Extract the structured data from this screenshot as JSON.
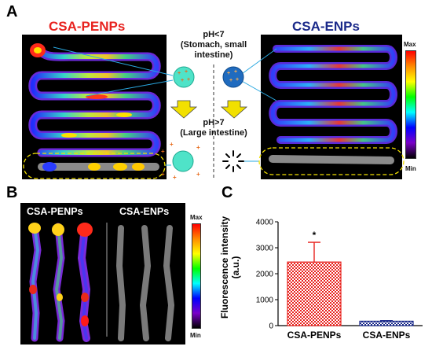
{
  "panel_a": {
    "label": "A",
    "left_title": "CSA-PENPs",
    "right_title": "CSA-ENPs",
    "ph_low": "pH<7",
    "ph_low_sub": "(Stomach, small intestine)",
    "ph_high": "pH>7",
    "ph_high_sub": "(Large intestine)",
    "colorbar_max": "Max",
    "colorbar_min": "Min"
  },
  "panel_b": {
    "label": "B",
    "left_title": "CSA-PENPs",
    "right_title": "CSA-ENPs",
    "colorbar_max": "Max",
    "colorbar_min": "Min"
  },
  "panel_c": {
    "label": "C",
    "significance": "*"
  },
  "chart_data": {
    "type": "bar",
    "categories": [
      "CSA-PENPs",
      "CSA-ENPs"
    ],
    "values": [
      2450,
      170
    ],
    "error": [
      760,
      20
    ],
    "ylabel": "Fluorescence intensity (a.u.)",
    "ylabel_line1": "Fluorescence intensity",
    "ylabel_line2": "(a.u.)",
    "ylim": [
      0,
      4000
    ],
    "yticks": [
      "0",
      "1000",
      "2000",
      "3000",
      "4000"
    ],
    "colors": [
      "#e8231f",
      "#1b2a8a"
    ]
  }
}
